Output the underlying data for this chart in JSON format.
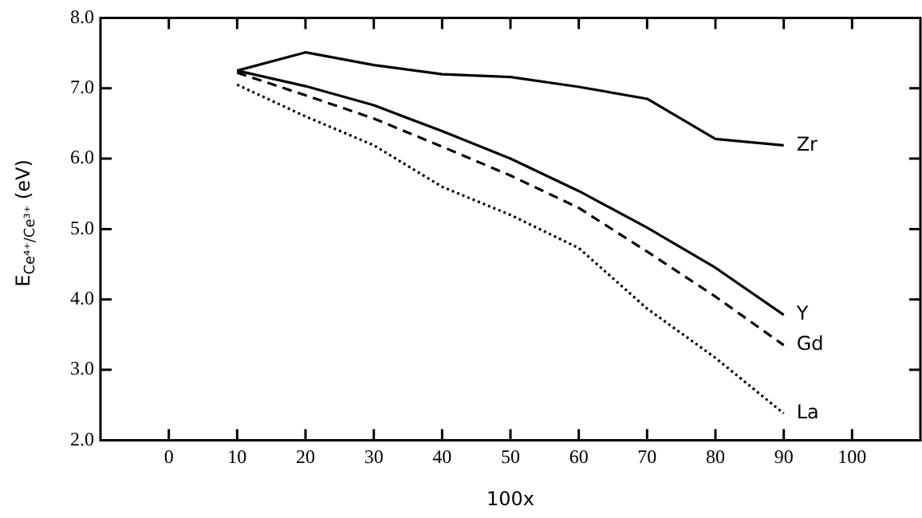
{
  "chart_data": {
    "type": "line",
    "xlabel": "100x",
    "ylabel": "E$_{Ce⁴⁺/Ce³⁺}$ (eV)",
    "x": [
      10,
      20,
      30,
      40,
      50,
      60,
      70,
      80,
      90
    ],
    "xlim": [
      -10,
      110
    ],
    "xticks": [
      0,
      10,
      20,
      30,
      40,
      50,
      60,
      70,
      80,
      90,
      100
    ],
    "ylim": [
      2,
      8
    ],
    "yticks": [
      {
        "value": 2,
        "label": "2.0"
      },
      {
        "value": 3,
        "label": "3.0"
      },
      {
        "value": 4,
        "label": "4.0"
      },
      {
        "value": 5,
        "label": "5.0"
      },
      {
        "value": 6,
        "label": "6.0"
      },
      {
        "value": 7,
        "label": "7.0"
      },
      {
        "value": 8,
        "label": "8.0"
      }
    ],
    "grid": false,
    "legend": false,
    "marker": "none",
    "series": [
      {
        "name": "Zr",
        "color": "#000000",
        "line_style": "solid",
        "values": [
          7.25,
          7.51,
          7.33,
          7.2,
          7.16,
          7.02,
          6.85,
          6.28,
          6.19
        ]
      },
      {
        "name": "Y",
        "color": "#000000",
        "line_style": "solid",
        "values": [
          7.25,
          7.03,
          6.76,
          6.39,
          6.0,
          5.54,
          5.02,
          4.45,
          3.78
        ]
      },
      {
        "name": "Gd",
        "color": "#000000",
        "line_style": "dashed",
        "values": [
          7.22,
          6.9,
          6.57,
          6.17,
          5.76,
          5.3,
          4.68,
          4.04,
          3.35
        ]
      },
      {
        "name": "La",
        "color": "#000000",
        "line_style": "dotted",
        "values": [
          7.05,
          6.6,
          6.19,
          5.6,
          5.2,
          4.73,
          3.87,
          3.17,
          2.38
        ]
      }
    ]
  }
}
